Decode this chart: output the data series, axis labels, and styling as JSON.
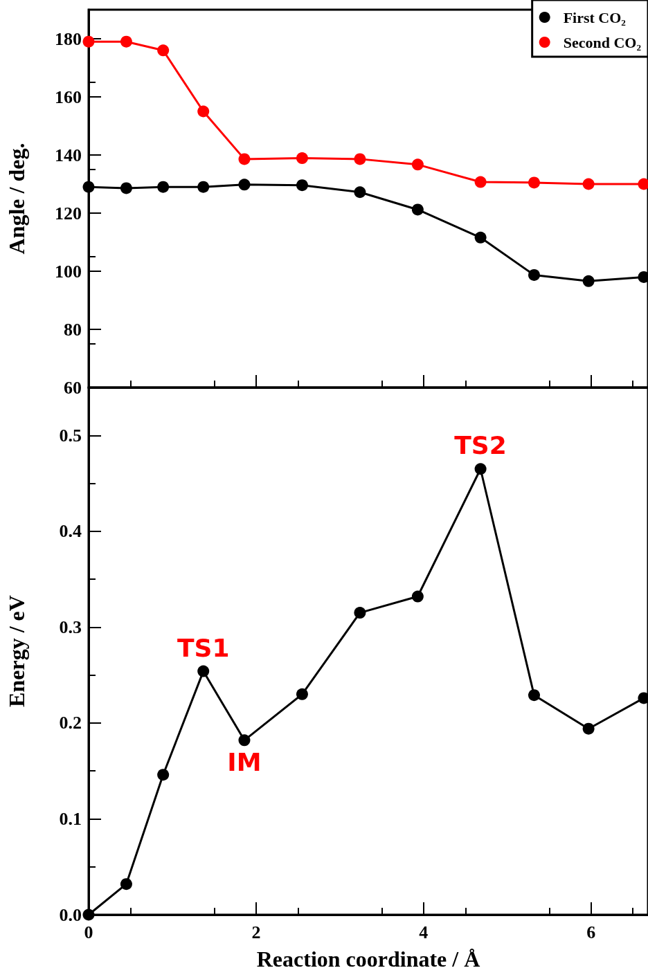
{
  "chart_data": [
    {
      "type": "line",
      "ylabel": "Angle / deg.",
      "x": [
        0,
        0.45,
        0.89,
        1.37,
        1.86,
        2.55,
        3.24,
        3.93,
        4.68,
        5.32,
        5.97,
        6.63
      ],
      "series": [
        {
          "name": "First CO₂",
          "color": "#000000",
          "values": [
            129,
            128.6,
            129,
            129,
            129.8,
            129.6,
            127.2,
            121.2,
            111.6,
            98.7,
            96.6,
            98
          ]
        },
        {
          "name": "Second CO₂",
          "color": "#ff0000",
          "values": [
            179,
            179,
            176,
            155,
            138.6,
            138.9,
            138.6,
            136.7,
            130.7,
            130.5,
            130,
            130
          ]
        }
      ],
      "xlim": [
        0,
        6.68
      ],
      "xticks": [
        0,
        2,
        4,
        6
      ],
      "ylim": [
        60,
        190
      ],
      "yticks": [
        60,
        80,
        100,
        120,
        140,
        160,
        180
      ],
      "tick_labels": "y",
      "legend": "top right",
      "marker": "circle",
      "line_style": "solid",
      "grid": false
    },
    {
      "type": "line",
      "xlabel": "Reaction coordinate / Å",
      "ylabel": "Energy / eV",
      "x": [
        0,
        0.45,
        0.89,
        1.37,
        1.86,
        2.55,
        3.24,
        3.93,
        4.68,
        5.32,
        5.97,
        6.63
      ],
      "series": [
        {
          "color": "#000000",
          "values": [
            0,
            0.032,
            0.146,
            0.254,
            0.182,
            0.23,
            0.315,
            0.332,
            0.465,
            0.229,
            0.194,
            0.226
          ]
        }
      ],
      "xlim": [
        0,
        6.68
      ],
      "xticks": [
        0,
        2,
        4,
        6
      ],
      "ylim": [
        0,
        0.55
      ],
      "yticks": [
        {
          "value": 0,
          "label": "0.0"
        },
        0.1,
        0.2,
        0.3,
        0.4,
        0.5
      ],
      "annotations": [
        {
          "text": "TS1",
          "x": 1.37,
          "y": 0.254
        },
        {
          "text": "IM",
          "x": 1.86,
          "y": 0.182
        },
        {
          "text": "TS2",
          "x": 4.68,
          "y": 0.465
        }
      ],
      "marker": "circle",
      "line_style": "solid",
      "grid": false
    }
  ]
}
